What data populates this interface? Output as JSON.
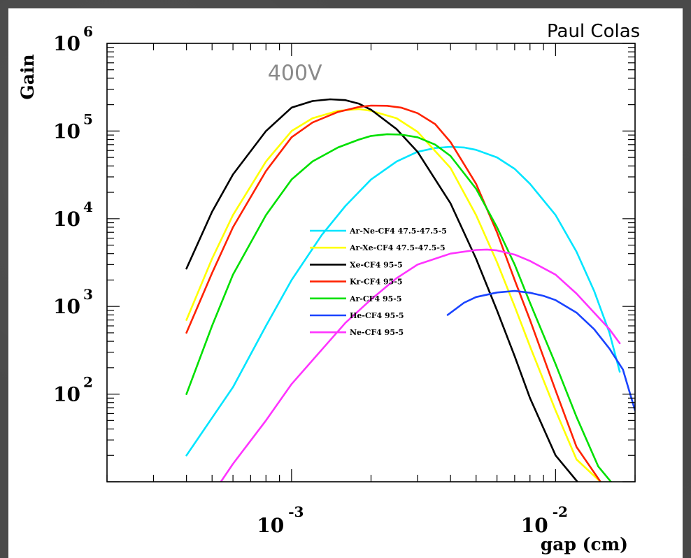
{
  "credit": "Paul Colas",
  "chart_data": {
    "type": "line",
    "xlabel": "gap (cm)",
    "ylabel": "Gain",
    "x_scale": "log",
    "y_scale": "log",
    "xlim": [
      0.0002,
      0.02
    ],
    "ylim": [
      10,
      1000000
    ],
    "x_ticks": [
      {
        "value": 0.001,
        "base": "10",
        "exp": "-3"
      },
      {
        "value": 0.01,
        "base": "10",
        "exp": "-2"
      }
    ],
    "y_ticks": [
      {
        "value": 100,
        "base": "10",
        "exp": "2"
      },
      {
        "value": 1000,
        "base": "10",
        "exp": "3"
      },
      {
        "value": 10000,
        "base": "10",
        "exp": "4"
      },
      {
        "value": 100000,
        "base": "10",
        "exp": "5"
      },
      {
        "value": 1000000,
        "base": "10",
        "exp": "6"
      }
    ],
    "annotation": "400V",
    "annotation_at": {
      "x": 0.00103,
      "y": 380000
    },
    "legend_position": "center",
    "series": [
      {
        "name": "Ar-Ne-CF4 47.5-47.5-5",
        "color": "#00e5ff",
        "points": [
          [
            0.0004,
            20
          ],
          [
            0.0006,
            120
          ],
          [
            0.0008,
            600
          ],
          [
            0.001,
            2000
          ],
          [
            0.0013,
            6500
          ],
          [
            0.0016,
            14000
          ],
          [
            0.002,
            28000
          ],
          [
            0.0025,
            45000
          ],
          [
            0.003,
            58000
          ],
          [
            0.0035,
            64000
          ],
          [
            0.004,
            66000
          ],
          [
            0.0045,
            65000
          ],
          [
            0.005,
            61000
          ],
          [
            0.006,
            50000
          ],
          [
            0.007,
            37000
          ],
          [
            0.008,
            25000
          ],
          [
            0.01,
            11000
          ],
          [
            0.012,
            4200
          ],
          [
            0.014,
            1500
          ],
          [
            0.016,
            500
          ],
          [
            0.0175,
            180
          ]
        ]
      },
      {
        "name": "Ar-Xe-CF4 47.5-47.5-5",
        "color": "#ffff00",
        "points": [
          [
            0.0004,
            700
          ],
          [
            0.0005,
            3500
          ],
          [
            0.0006,
            11000
          ],
          [
            0.0008,
            45000
          ],
          [
            0.001,
            100000
          ],
          [
            0.0012,
            140000
          ],
          [
            0.0015,
            170000
          ],
          [
            0.0018,
            178000
          ],
          [
            0.002,
            170000
          ],
          [
            0.0025,
            140000
          ],
          [
            0.003,
            98000
          ],
          [
            0.004,
            38000
          ],
          [
            0.005,
            11000
          ],
          [
            0.006,
            3200
          ],
          [
            0.007,
            1000
          ],
          [
            0.008,
            350
          ],
          [
            0.01,
            65
          ],
          [
            0.012,
            18
          ],
          [
            0.0148,
            10
          ]
        ]
      },
      {
        "name": "Xe-CF4 95-5",
        "color": "#000000",
        "points": [
          [
            0.0004,
            2700
          ],
          [
            0.0005,
            12000
          ],
          [
            0.0006,
            32000
          ],
          [
            0.0008,
            100000
          ],
          [
            0.001,
            185000
          ],
          [
            0.0012,
            220000
          ],
          [
            0.0014,
            230000
          ],
          [
            0.0016,
            225000
          ],
          [
            0.0018,
            205000
          ],
          [
            0.002,
            175000
          ],
          [
            0.0025,
            105000
          ],
          [
            0.003,
            58000
          ],
          [
            0.004,
            15000
          ],
          [
            0.005,
            3500
          ],
          [
            0.006,
            900
          ],
          [
            0.007,
            270
          ],
          [
            0.008,
            90
          ],
          [
            0.01,
            20
          ],
          [
            0.0121,
            10
          ]
        ]
      },
      {
        "name": "Kr-CF4 95-5",
        "color": "#ff2200",
        "points": [
          [
            0.0004,
            500
          ],
          [
            0.0005,
            2400
          ],
          [
            0.0006,
            8000
          ],
          [
            0.0008,
            35000
          ],
          [
            0.001,
            85000
          ],
          [
            0.0012,
            125000
          ],
          [
            0.0015,
            165000
          ],
          [
            0.0018,
            188000
          ],
          [
            0.002,
            195000
          ],
          [
            0.0023,
            194000
          ],
          [
            0.0026,
            185000
          ],
          [
            0.003,
            160000
          ],
          [
            0.0035,
            120000
          ],
          [
            0.004,
            75000
          ],
          [
            0.005,
            25000
          ],
          [
            0.006,
            7000
          ],
          [
            0.007,
            2000
          ],
          [
            0.008,
            700
          ],
          [
            0.01,
            110
          ],
          [
            0.012,
            25
          ],
          [
            0.0148,
            10
          ]
        ]
      },
      {
        "name": "Ar-CF4 95-5",
        "color": "#00e000",
        "points": [
          [
            0.0004,
            100
          ],
          [
            0.0005,
            600
          ],
          [
            0.0006,
            2300
          ],
          [
            0.0008,
            11000
          ],
          [
            0.001,
            28000
          ],
          [
            0.0012,
            45000
          ],
          [
            0.0015,
            65000
          ],
          [
            0.0018,
            80000
          ],
          [
            0.002,
            88000
          ],
          [
            0.0023,
            92000
          ],
          [
            0.0026,
            91000
          ],
          [
            0.003,
            85000
          ],
          [
            0.0035,
            70000
          ],
          [
            0.004,
            52000
          ],
          [
            0.005,
            22000
          ],
          [
            0.006,
            8000
          ],
          [
            0.007,
            3000
          ],
          [
            0.008,
            1100
          ],
          [
            0.01,
            220
          ],
          [
            0.012,
            55
          ],
          [
            0.0145,
            15
          ],
          [
            0.0162,
            10
          ]
        ]
      },
      {
        "name": "He-CF4 95-5",
        "color": "#1a44ff",
        "points": [
          [
            0.0039,
            800
          ],
          [
            0.0045,
            1100
          ],
          [
            0.005,
            1280
          ],
          [
            0.006,
            1440
          ],
          [
            0.007,
            1500
          ],
          [
            0.008,
            1430
          ],
          [
            0.009,
            1320
          ],
          [
            0.01,
            1180
          ],
          [
            0.012,
            850
          ],
          [
            0.014,
            550
          ],
          [
            0.016,
            330
          ],
          [
            0.018,
            190
          ],
          [
            0.02,
            65
          ]
        ]
      },
      {
        "name": "Ne-CF4 95-5",
        "color": "#ff33ff",
        "points": [
          [
            0.00054,
            10
          ],
          [
            0.0006,
            16
          ],
          [
            0.0008,
            50
          ],
          [
            0.001,
            130
          ],
          [
            0.0013,
            320
          ],
          [
            0.0016,
            650
          ],
          [
            0.002,
            1200
          ],
          [
            0.0025,
            2100
          ],
          [
            0.003,
            3000
          ],
          [
            0.004,
            4000
          ],
          [
            0.005,
            4400
          ],
          [
            0.0055,
            4450
          ],
          [
            0.006,
            4350
          ],
          [
            0.007,
            3900
          ],
          [
            0.008,
            3300
          ],
          [
            0.01,
            2300
          ],
          [
            0.012,
            1400
          ],
          [
            0.014,
            850
          ],
          [
            0.016,
            550
          ],
          [
            0.0175,
            380
          ]
        ]
      }
    ]
  }
}
